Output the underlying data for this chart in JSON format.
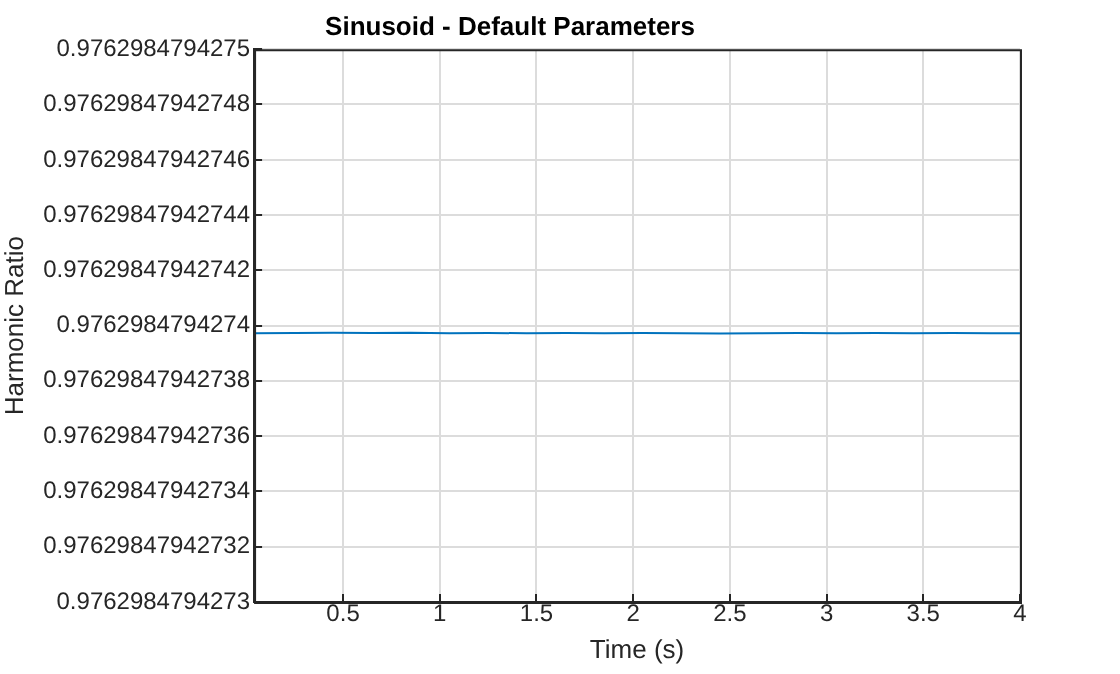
{
  "chart_data": {
    "type": "line",
    "title": "Sinusoid - Default Parameters",
    "xlabel": "Time (s)",
    "ylabel": "Harmonic Ratio",
    "x": [
      0.04,
      0.25,
      0.45,
      0.65,
      0.85,
      1.05,
      1.25,
      1.45,
      1.65,
      1.85,
      2.05,
      2.25,
      2.45,
      2.65,
      2.85,
      3.05,
      3.25,
      3.45,
      3.65,
      3.85,
      4
    ],
    "series": [
      {
        "color": "#0072bd",
        "values": [
          0.9762984794273972,
          0.9762984794273973,
          0.9762984794273974,
          0.9762984794273973,
          0.9762984794273974,
          0.9762984794273972,
          0.9762984794273973,
          0.9762984794273972,
          0.9762984794273973,
          0.9762984794273972,
          0.9762984794273973,
          0.9762984794273972,
          0.9762984794273971,
          0.9762984794273972,
          0.9762984794273973,
          0.9762984794273972,
          0.9762984794273973,
          0.9762984794273972,
          0.9762984794273973,
          0.9762984794273972,
          0.9762984794273972
        ]
      }
    ],
    "xlim": [
      0.04,
      4
    ],
    "xticks": [
      0.5,
      1,
      1.5,
      2,
      2.5,
      3,
      3.5,
      4
    ],
    "ylim": [
      0.9762984794273,
      0.9762984794275
    ],
    "yticks": [
      {
        "value": 0.9762984794273,
        "label": "0.9762984794273"
      },
      {
        "value": 0.97629847942732,
        "label": "0.97629847942732"
      },
      {
        "value": 0.97629847942734,
        "label": "0.97629847942734"
      },
      {
        "value": 0.97629847942736,
        "label": "0.97629847942736"
      },
      {
        "value": 0.97629847942738,
        "label": "0.97629847942738"
      },
      {
        "value": 0.9762984794274,
        "label": "0.9762984794274"
      },
      {
        "value": 0.97629847942742,
        "label": "0.97629847942742"
      },
      {
        "value": 0.97629847942744,
        "label": "0.97629847942744"
      },
      {
        "value": 0.97629847942746,
        "label": "0.97629847942746"
      },
      {
        "value": 0.97629847942748,
        "label": "0.97629847942748"
      },
      {
        "value": 0.9762984794275,
        "label": "0.9762984794275"
      }
    ],
    "grid": true,
    "legend": false,
    "marker": "none",
    "line_style": "solid"
  }
}
